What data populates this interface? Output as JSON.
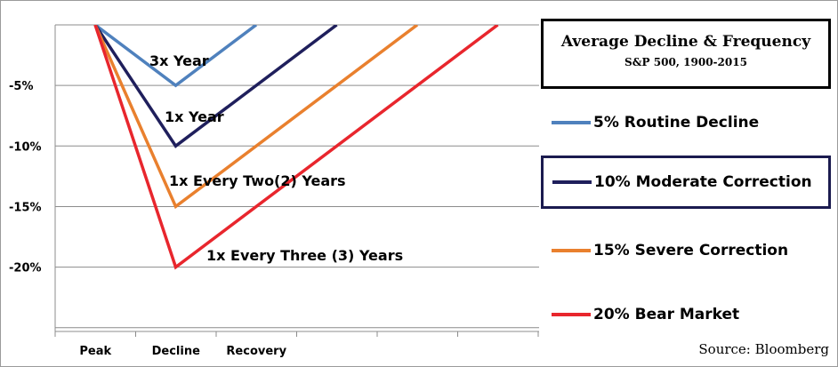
{
  "chart_data": {
    "type": "line",
    "title": "Average Decline & Frequency",
    "subtitle": "S&P 500, 1900-2015",
    "categories": [
      "Peak",
      "Decline",
      "Recovery",
      "",
      "",
      "",
      ""
    ],
    "y_tick_labels": [
      "-5%",
      "-10%",
      "-15%",
      "-20%"
    ],
    "ylim": [
      -25,
      0
    ],
    "grid": "horizontal",
    "legend_position": "right",
    "series": [
      {
        "name": "5% Routine Decline",
        "color": "#4f81bd",
        "annotation": "3x Year",
        "points": [
          [
            0,
            0
          ],
          [
            1,
            -5
          ],
          [
            2.0,
            0
          ]
        ]
      },
      {
        "name": "10% Moderate Correction",
        "color": "#1f1f5c",
        "annotation": "1x Year",
        "points": [
          [
            0,
            0
          ],
          [
            1,
            -10
          ],
          [
            3.0,
            0
          ]
        ]
      },
      {
        "name": "15% Severe Correction",
        "color": "#e9802e",
        "annotation": "1x Every  Two(2) Years",
        "points": [
          [
            0,
            0
          ],
          [
            1,
            -15
          ],
          [
            4.0,
            0
          ]
        ]
      },
      {
        "name": "20% Bear Market",
        "color": "#e8262d",
        "annotation": "1x Every Three (3) Years",
        "points": [
          [
            0,
            0
          ],
          [
            1,
            -20
          ],
          [
            5.0,
            0
          ]
        ]
      }
    ],
    "source": "Source: Bloomberg"
  }
}
